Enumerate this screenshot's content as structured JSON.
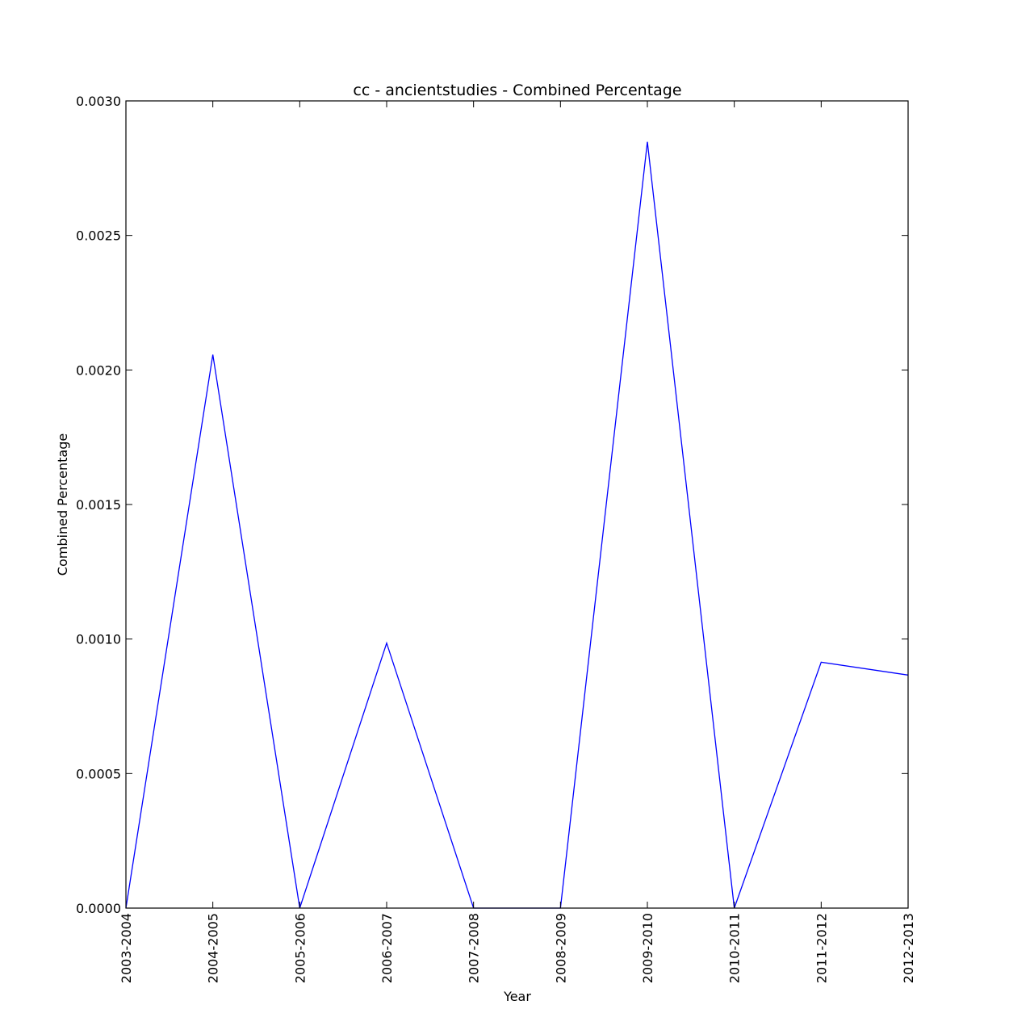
{
  "chart_data": {
    "type": "line",
    "title": "cc - ancientstudies - Combined Percentage",
    "xlabel": "Year",
    "ylabel": "Combined Percentage",
    "categories": [
      "2003-2004",
      "2004-2005",
      "2005-2006",
      "2006-2007",
      "2007-2008",
      "2008-2009",
      "2009-2010",
      "2010-2011",
      "2011-2012",
      "2012-2013"
    ],
    "series": [
      {
        "values": [
          0.0,
          0.002057,
          0.0,
          0.000985,
          0.0,
          0.0,
          0.002848,
          0.0,
          0.000914,
          0.000866
        ],
        "color": "#0000ff"
      }
    ],
    "yticks": [
      "0.0000",
      "0.0005",
      "0.0010",
      "0.0015",
      "0.0020",
      "0.0025",
      "0.0030"
    ],
    "ytick_values": [
      0,
      0.0005,
      0.001,
      0.0015,
      0.002,
      0.0025,
      0.003
    ],
    "ylim": [
      0,
      0.003
    ],
    "grid": false,
    "legend": "none"
  }
}
